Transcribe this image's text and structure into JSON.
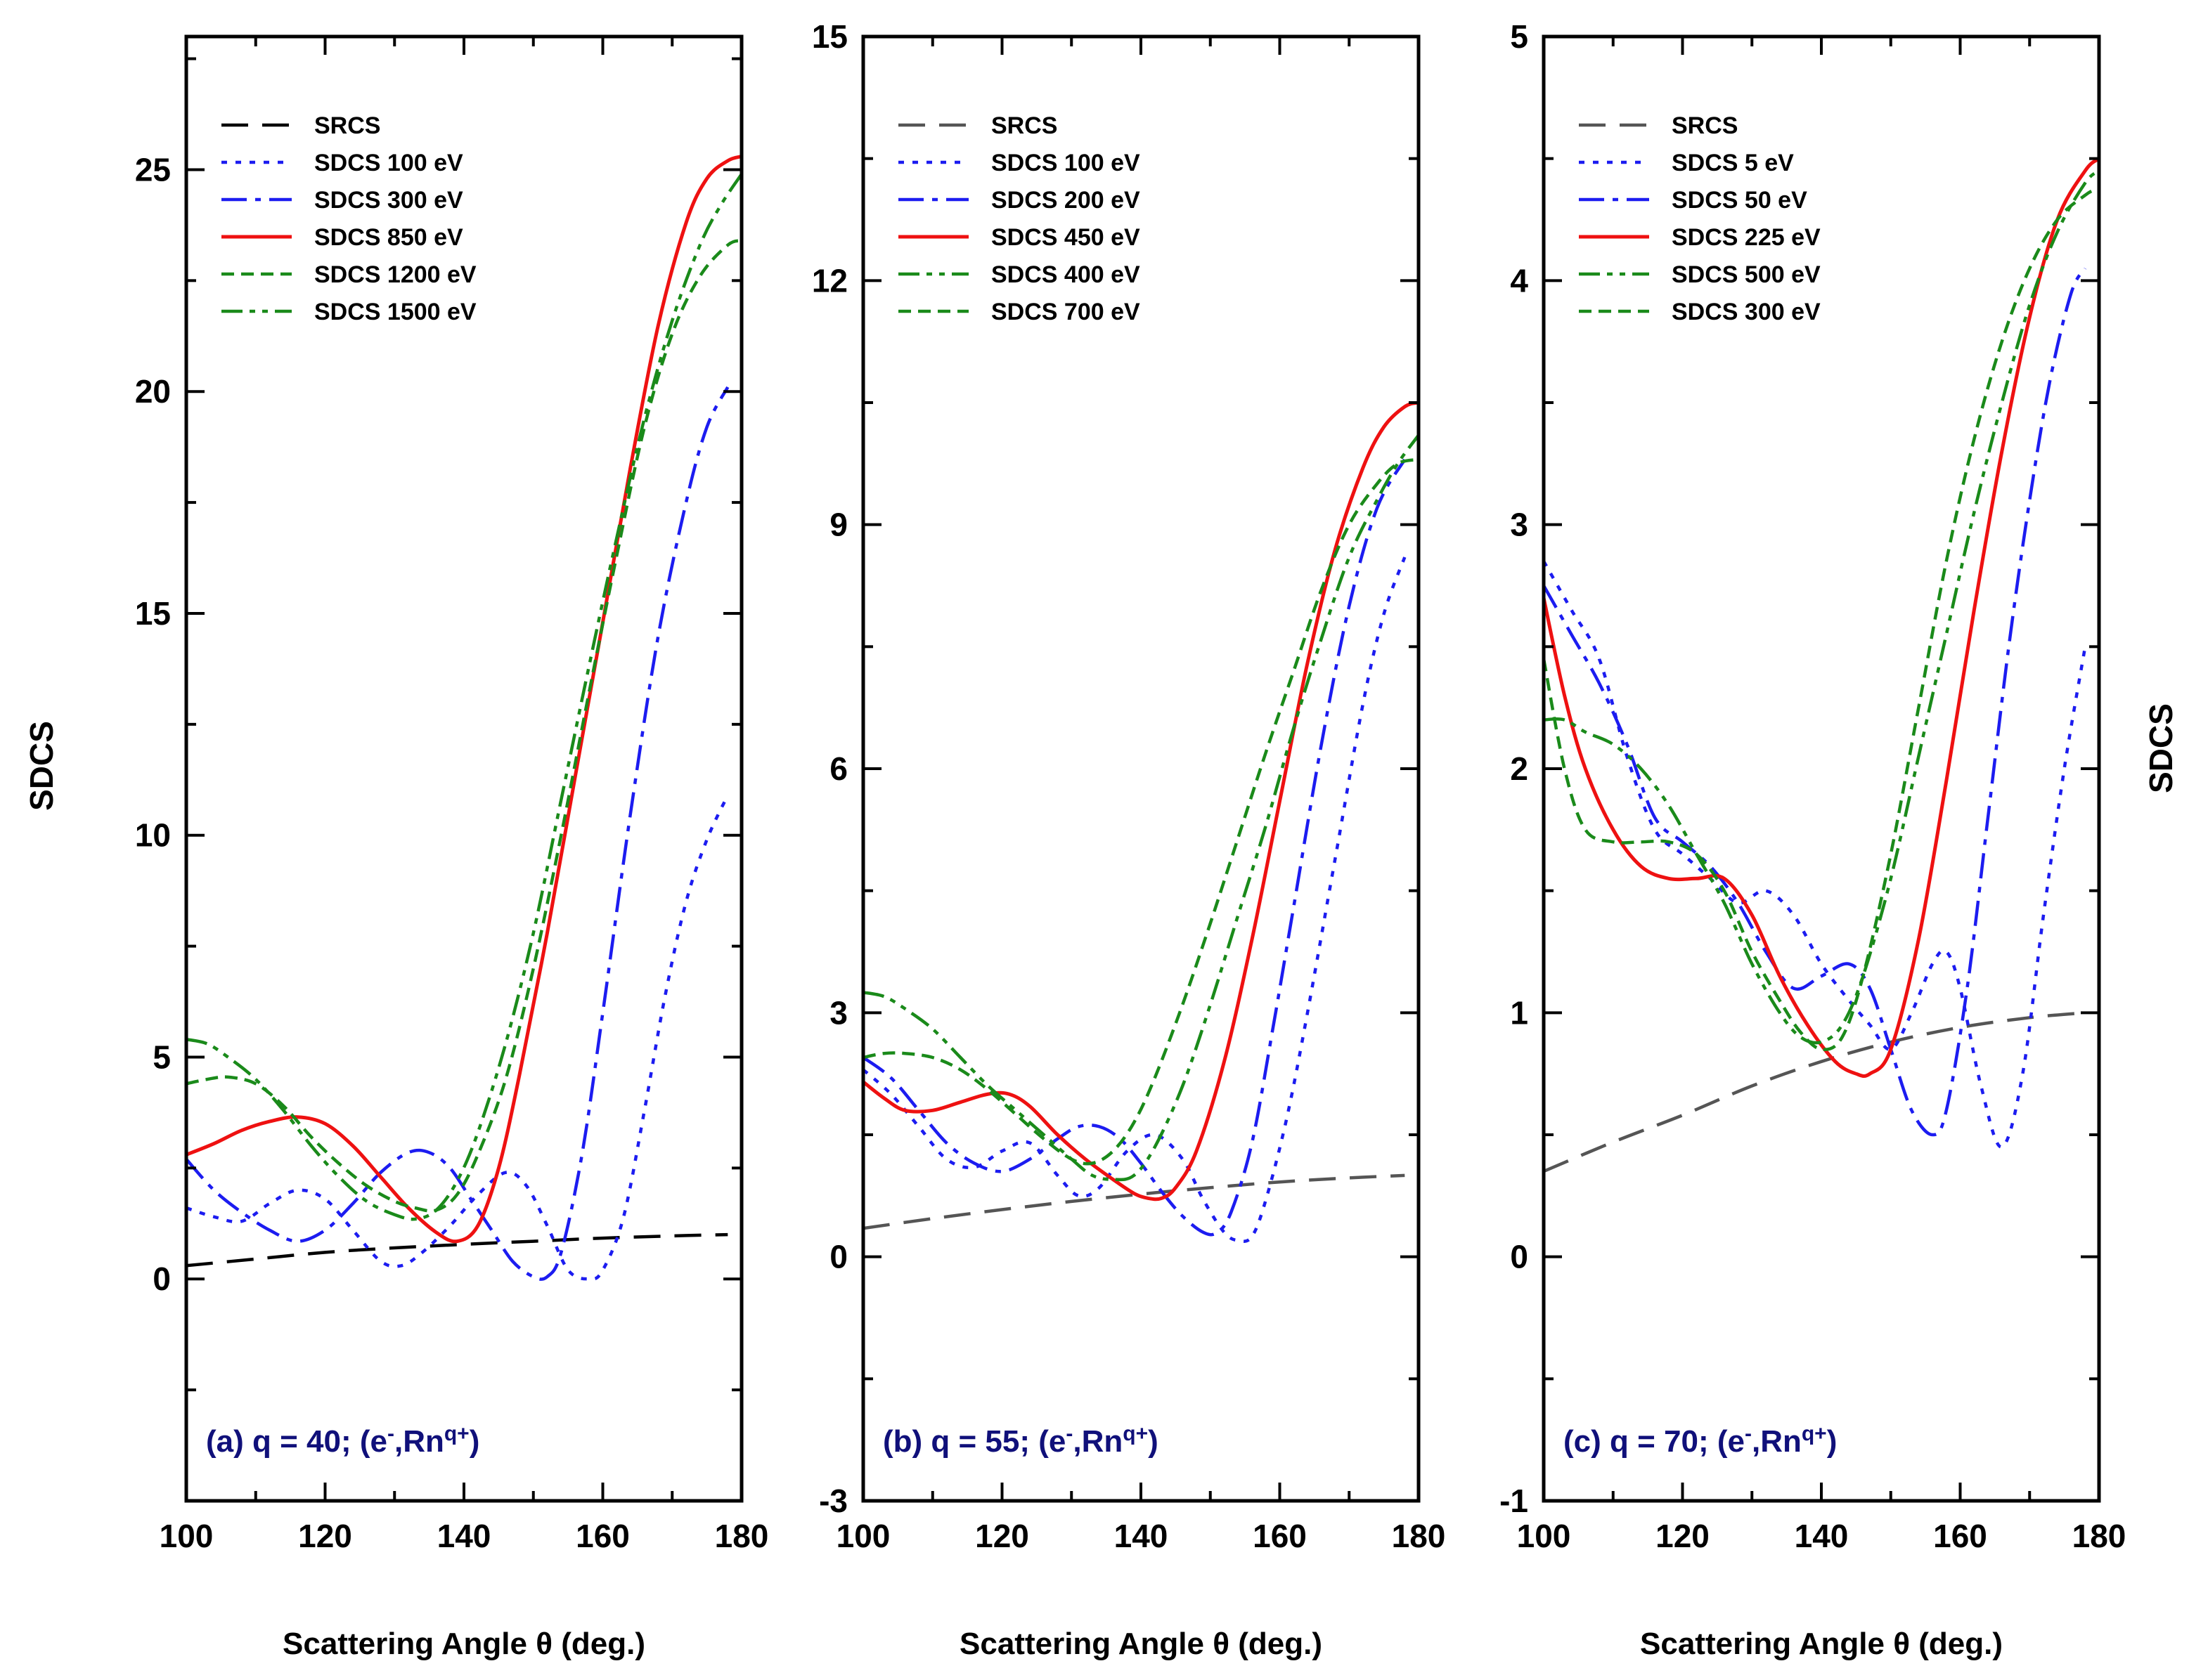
{
  "chart_data": [
    {
      "type": "line",
      "panel": "a",
      "annotation": {
        "prefix": "(a) q = 40; (e",
        "sup1": "-",
        "mid": ",Rn",
        "sup2": "q+",
        "suffix": ")"
      },
      "xlabel": "Scattering Angle θ (deg.)",
      "ylabel": "SDCS",
      "xlim": [
        100,
        180
      ],
      "ylim": [
        -5,
        28
      ],
      "xticks": [
        100,
        120,
        140,
        160,
        180
      ],
      "yticks": [
        0,
        5,
        10,
        15,
        20,
        25
      ],
      "legend_position": "top-left",
      "series": [
        {
          "name": "SRCS",
          "color": "#000000",
          "style": "dash",
          "x": [
            100,
            110,
            120,
            130,
            140,
            150,
            160,
            170,
            178
          ],
          "y": [
            0.3,
            0.45,
            0.6,
            0.7,
            0.78,
            0.85,
            0.92,
            0.97,
            1.0
          ]
        },
        {
          "name": "SDCS 100 eV",
          "color": "#1c1cf0",
          "style": "dot",
          "x": [
            100,
            104,
            108,
            112,
            116,
            120,
            124,
            128,
            131,
            134,
            138,
            142,
            146,
            149,
            152,
            155,
            158,
            160,
            163,
            166,
            169,
            172,
            175,
            178
          ],
          "y": [
            1.6,
            1.4,
            1.3,
            1.7,
            2.0,
            1.8,
            1.1,
            0.4,
            0.3,
            0.6,
            1.2,
            1.9,
            2.4,
            2.1,
            1.2,
            0.2,
            0.0,
            0.2,
            1.4,
            3.8,
            6.4,
            8.5,
            9.9,
            10.9
          ]
        },
        {
          "name": "SDCS 300 eV",
          "color": "#1c1cf0",
          "style": "dashdot",
          "x": [
            100,
            104,
            108,
            112,
            116,
            120,
            124,
            128,
            132,
            135,
            138,
            141,
            144,
            147,
            150,
            152,
            154,
            157,
            160,
            164,
            168,
            172,
            175,
            178
          ],
          "y": [
            2.7,
            2.0,
            1.5,
            1.1,
            0.85,
            1.1,
            1.7,
            2.4,
            2.85,
            2.85,
            2.5,
            1.8,
            1.1,
            0.4,
            0.05,
            0.05,
            0.6,
            2.8,
            6.0,
            10.5,
            14.5,
            17.5,
            19.2,
            20.1
          ]
        },
        {
          "name": "SDCS 850 eV",
          "color": "#ee1111",
          "style": "solid",
          "x": [
            100,
            104,
            108,
            112,
            116,
            120,
            124,
            128,
            132,
            136,
            139,
            142,
            145,
            148,
            152,
            156,
            160,
            164,
            168,
            172,
            175,
            178,
            180
          ],
          "y": [
            2.8,
            3.05,
            3.35,
            3.55,
            3.65,
            3.5,
            3.0,
            2.3,
            1.6,
            1.05,
            0.85,
            1.2,
            2.5,
            4.6,
            7.8,
            11.3,
            14.8,
            18.3,
            21.5,
            23.8,
            24.8,
            25.2,
            25.3
          ]
        },
        {
          "name": "SDCS 1200 eV",
          "color": "#1a8a1a",
          "style": "shortdash",
          "x": [
            100,
            103,
            106,
            110,
            114,
            118,
            122,
            126,
            130,
            133,
            136,
            139,
            142,
            146,
            150,
            154,
            158,
            162,
            166,
            170,
            174,
            178,
            180
          ],
          "y": [
            4.4,
            4.5,
            4.55,
            4.4,
            3.9,
            3.2,
            2.6,
            2.1,
            1.75,
            1.6,
            1.55,
            1.9,
            2.8,
            4.5,
            7.0,
            10.0,
            13.2,
            16.3,
            19.2,
            21.3,
            22.6,
            23.3,
            23.4
          ]
        },
        {
          "name": "SDCS 1500 eV",
          "color": "#1a8a1a",
          "style": "dashdotdot",
          "x": [
            100,
            103,
            106,
            110,
            114,
            118,
            122,
            126,
            130,
            133,
            136,
            139,
            142,
            146,
            150,
            154,
            158,
            162,
            166,
            170,
            174,
            177,
            180
          ],
          "y": [
            5.4,
            5.3,
            5.0,
            4.5,
            3.8,
            3.0,
            2.3,
            1.75,
            1.45,
            1.35,
            1.55,
            2.2,
            3.3,
            5.3,
            7.8,
            10.8,
            13.8,
            16.7,
            19.4,
            21.6,
            23.3,
            24.2,
            24.9
          ]
        }
      ]
    },
    {
      "type": "line",
      "panel": "b",
      "annotation": {
        "prefix": "(b) q = 55; (e",
        "sup1": "-",
        "mid": ",Rn",
        "sup2": "q+",
        "suffix": ")"
      },
      "xlabel": "Scattering Angle θ (deg.)",
      "ylabel": "SDCS",
      "xlim": [
        100,
        180
      ],
      "ylim": [
        -3,
        15
      ],
      "xticks": [
        100,
        120,
        140,
        160,
        180
      ],
      "yticks": [
        -3,
        0,
        3,
        6,
        9,
        12,
        15
      ],
      "legend_position": "top-left",
      "series": [
        {
          "name": "SRCS",
          "color": "#555555",
          "style": "dash",
          "x": [
            100,
            110,
            120,
            130,
            140,
            150,
            160,
            170,
            178
          ],
          "y": [
            0.35,
            0.47,
            0.58,
            0.68,
            0.77,
            0.85,
            0.92,
            0.97,
            1.0
          ]
        },
        {
          "name": "SDCS 100 eV",
          "color": "#1c1cf0",
          "style": "dot",
          "x": [
            100,
            104,
            108,
            112,
            116,
            120,
            124,
            128,
            131,
            134,
            138,
            142,
            146,
            149,
            152,
            154,
            156,
            158,
            161,
            164,
            168,
            172,
            175,
            178
          ],
          "y": [
            2.3,
            2.0,
            1.6,
            1.2,
            1.1,
            1.3,
            1.4,
            1.0,
            0.75,
            0.85,
            1.3,
            1.5,
            1.2,
            0.7,
            0.3,
            0.2,
            0.25,
            0.7,
            1.7,
            3.0,
            4.9,
            6.8,
            7.9,
            8.6
          ]
        },
        {
          "name": "SDCS 200 eV",
          "color": "#1c1cf0",
          "style": "dashdot",
          "x": [
            100,
            104,
            108,
            112,
            116,
            120,
            124,
            128,
            131,
            134,
            137,
            140,
            143,
            146,
            149,
            151,
            153,
            156,
            159,
            162,
            166,
            170,
            174,
            178
          ],
          "y": [
            2.45,
            2.2,
            1.8,
            1.4,
            1.15,
            1.05,
            1.2,
            1.45,
            1.6,
            1.6,
            1.45,
            1.15,
            0.8,
            0.5,
            0.3,
            0.3,
            0.55,
            1.4,
            2.8,
            4.3,
            6.3,
            8.0,
            9.2,
            9.8
          ]
        },
        {
          "name": "SDCS 450 eV",
          "color": "#ee1111",
          "style": "solid",
          "x": [
            100,
            103,
            106,
            110,
            114,
            118,
            121,
            124,
            128,
            132,
            136,
            139,
            141,
            143,
            145,
            148,
            152,
            156,
            160,
            164,
            168,
            172,
            175,
            178,
            180
          ],
          "y": [
            2.15,
            1.95,
            1.8,
            1.8,
            1.9,
            2.0,
            2.0,
            1.85,
            1.5,
            1.2,
            0.95,
            0.78,
            0.72,
            0.72,
            0.85,
            1.3,
            2.4,
            3.9,
            5.6,
            7.3,
            8.7,
            9.7,
            10.2,
            10.45,
            10.5
          ]
        },
        {
          "name": "SDCS 400 eV",
          "color": "#1a8a1a",
          "style": "dashdotdot",
          "x": [
            100,
            103,
            106,
            110,
            114,
            118,
            122,
            126,
            130,
            133,
            136,
            139,
            142,
            146,
            150,
            154,
            158,
            162,
            166,
            170,
            174,
            177,
            180
          ],
          "y": [
            3.25,
            3.2,
            3.05,
            2.8,
            2.45,
            2.1,
            1.8,
            1.5,
            1.2,
            1.0,
            0.95,
            1.0,
            1.35,
            2.1,
            3.1,
            4.2,
            5.3,
            6.5,
            7.6,
            8.6,
            9.3,
            9.75,
            10.1
          ]
        },
        {
          "name": "SDCS 700 eV",
          "color": "#1a8a1a",
          "style": "shortdash",
          "x": [
            100,
            103,
            106,
            110,
            114,
            118,
            122,
            126,
            130,
            133,
            136,
            139,
            142,
            146,
            150,
            154,
            158,
            162,
            166,
            170,
            174,
            177,
            180
          ],
          "y": [
            2.45,
            2.5,
            2.5,
            2.45,
            2.3,
            2.05,
            1.75,
            1.45,
            1.2,
            1.15,
            1.3,
            1.65,
            2.2,
            3.1,
            4.1,
            5.15,
            6.2,
            7.2,
            8.2,
            9.0,
            9.5,
            9.75,
            9.8
          ]
        }
      ]
    },
    {
      "type": "line",
      "panel": "c",
      "annotation": {
        "prefix": "(c) q = 70; (e",
        "sup1": "-",
        "mid": ",Rn",
        "sup2": "q+",
        "suffix": ")"
      },
      "xlabel": "Scattering Angle θ (deg.)",
      "ylabel": "SDCS",
      "xlim": [
        100,
        180
      ],
      "ylim": [
        -1,
        5
      ],
      "xticks": [
        100,
        120,
        140,
        160,
        180
      ],
      "yticks": [
        -1,
        0,
        1,
        2,
        3,
        4,
        5
      ],
      "legend_position": "top-left",
      "series": [
        {
          "name": "SRCS",
          "color": "#555555",
          "style": "dash",
          "x": [
            100,
            110,
            120,
            130,
            140,
            150,
            160,
            170,
            178
          ],
          "y": [
            0.35,
            0.47,
            0.58,
            0.7,
            0.8,
            0.88,
            0.94,
            0.98,
            1.0
          ]
        },
        {
          "name": "SDCS 5 eV",
          "color": "#1c1cf0",
          "style": "dot",
          "x": [
            100,
            104,
            108,
            112,
            116,
            120,
            124,
            128,
            132,
            136,
            140,
            144,
            147,
            150,
            153,
            156,
            158,
            160,
            163,
            166,
            169,
            172,
            175,
            178
          ],
          "y": [
            2.85,
            2.65,
            2.45,
            2.05,
            1.75,
            1.65,
            1.55,
            1.45,
            1.5,
            1.4,
            1.2,
            1.05,
            0.95,
            0.85,
            1.0,
            1.2,
            1.25,
            1.1,
            0.7,
            0.45,
            0.75,
            1.4,
            2.0,
            2.5
          ]
        },
        {
          "name": "SDCS 50 eV",
          "color": "#1c1cf0",
          "style": "dashdot",
          "x": [
            100,
            104,
            108,
            112,
            116,
            120,
            124,
            128,
            132,
            136,
            140,
            144,
            147,
            150,
            153,
            156,
            158,
            161,
            164,
            167,
            170,
            173,
            176,
            178
          ],
          "y": [
            2.75,
            2.55,
            2.35,
            2.1,
            1.8,
            1.7,
            1.6,
            1.45,
            1.25,
            1.1,
            1.15,
            1.2,
            1.1,
            0.85,
            0.6,
            0.5,
            0.6,
            1.1,
            1.8,
            2.5,
            3.1,
            3.6,
            3.95,
            4.05
          ]
        },
        {
          "name": "SDCS 225 eV",
          "color": "#ee1111",
          "style": "solid",
          "x": [
            100,
            103,
            106,
            110,
            114,
            118,
            122,
            126,
            130,
            134,
            138,
            142,
            145,
            147,
            150,
            154,
            158,
            162,
            166,
            170,
            174,
            178,
            180
          ],
          "y": [
            2.7,
            2.3,
            2.0,
            1.75,
            1.6,
            1.55,
            1.55,
            1.55,
            1.4,
            1.15,
            0.95,
            0.8,
            0.75,
            0.75,
            0.85,
            1.3,
            1.95,
            2.65,
            3.3,
            3.85,
            4.25,
            4.45,
            4.5
          ]
        },
        {
          "name": "SDCS 500 eV",
          "color": "#1a8a1a",
          "style": "dashdotdot",
          "x": [
            100,
            103,
            106,
            110,
            114,
            118,
            122,
            126,
            130,
            134,
            137,
            140,
            143,
            146,
            150,
            154,
            158,
            162,
            166,
            170,
            174,
            178,
            180
          ],
          "y": [
            2.2,
            2.2,
            2.15,
            2.1,
            2.0,
            1.85,
            1.65,
            1.45,
            1.2,
            1.0,
            0.9,
            0.88,
            0.95,
            1.15,
            1.55,
            2.05,
            2.55,
            3.05,
            3.5,
            3.9,
            4.2,
            4.4,
            4.45
          ]
        },
        {
          "name": "SDCS 300 eV",
          "color": "#1a8a1a",
          "style": "shortdash",
          "x": [
            100,
            103,
            106,
            110,
            114,
            118,
            122,
            126,
            130,
            134,
            137,
            140,
            143,
            146,
            150,
            154,
            158,
            162,
            166,
            170,
            174,
            178,
            180
          ],
          "y": [
            2.45,
            2.0,
            1.75,
            1.7,
            1.7,
            1.7,
            1.65,
            1.5,
            1.25,
            1.05,
            0.92,
            0.85,
            0.9,
            1.15,
            1.65,
            2.25,
            2.85,
            3.35,
            3.75,
            4.05,
            4.25,
            4.35,
            4.38
          ]
        }
      ]
    }
  ]
}
